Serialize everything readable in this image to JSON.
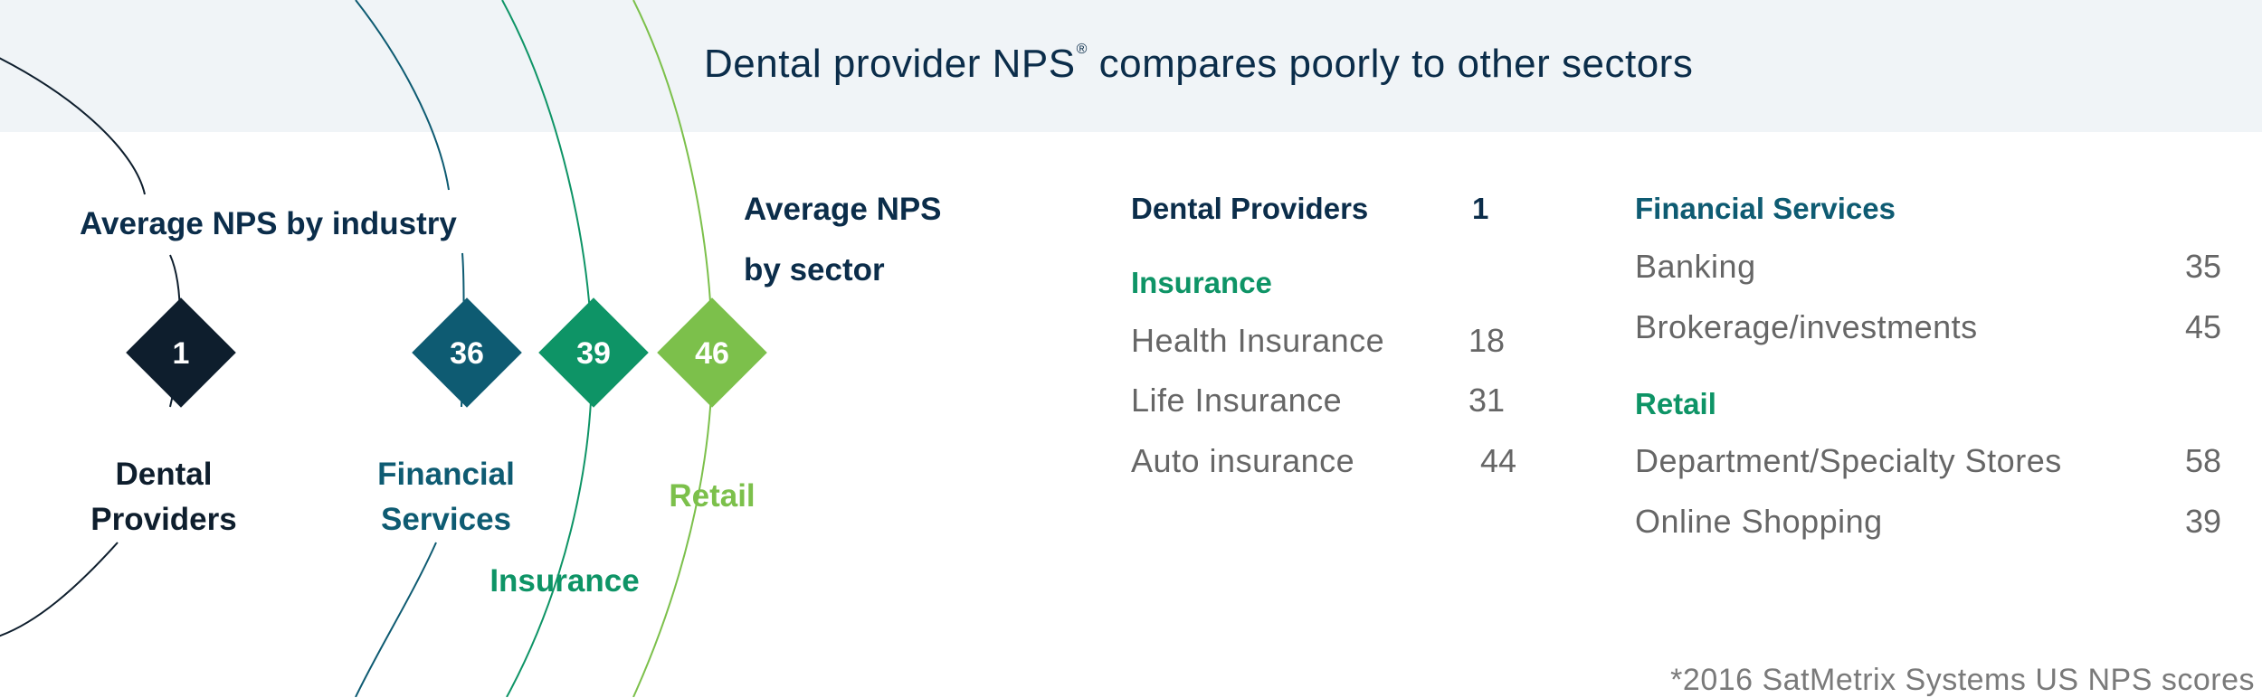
{
  "title": {
    "text": "Dental provider NPS",
    "mark": "®",
    "suffix": " compares poorly to other sectors"
  },
  "chart_data": {
    "type": "table",
    "title": "Average NPS by industry",
    "industries": [
      {
        "name": "Dental Providers",
        "label_line1": "Dental",
        "label_line2": "Providers",
        "nps": 1,
        "color": "#0e1e2d"
      },
      {
        "name": "Financial Services",
        "label_line1": "Financial",
        "label_line2": "Services",
        "nps": 36,
        "color": "#0e5b72"
      },
      {
        "name": "Insurance",
        "label_line1": "Insurance",
        "label_line2": "",
        "nps": 39,
        "color": "#0e9466"
      },
      {
        "name": "Retail",
        "label_line1": "Retail",
        "label_line2": "",
        "nps": 46,
        "color": "#7cc04b"
      }
    ],
    "sector_table": {
      "title_line1": "Average NPS",
      "title_line2": "by sector",
      "dental": {
        "label": "Dental Providers",
        "value": 1
      },
      "groups": [
        {
          "name": "Insurance",
          "color": "#0e9466",
          "rows": [
            {
              "label": "Health Insurance",
              "value": 18
            },
            {
              "label": "Life Insurance",
              "value": 31
            },
            {
              "label": "Auto insurance",
              "value": 44
            }
          ]
        },
        {
          "name": "Financial Services",
          "color": "#0e5b72",
          "rows": [
            {
              "label": "Banking",
              "value": 35
            },
            {
              "label": "Brokerage/investments",
              "value": 45
            }
          ]
        },
        {
          "name": "Retail",
          "color": "#0e9466",
          "rows": [
            {
              "label": "Department/Specialty Stores",
              "value": 58
            },
            {
              "label": "Online Shopping",
              "value": 39
            }
          ]
        }
      ]
    }
  },
  "footnote": "*2016 SatMetrix Systems US NPS scores"
}
